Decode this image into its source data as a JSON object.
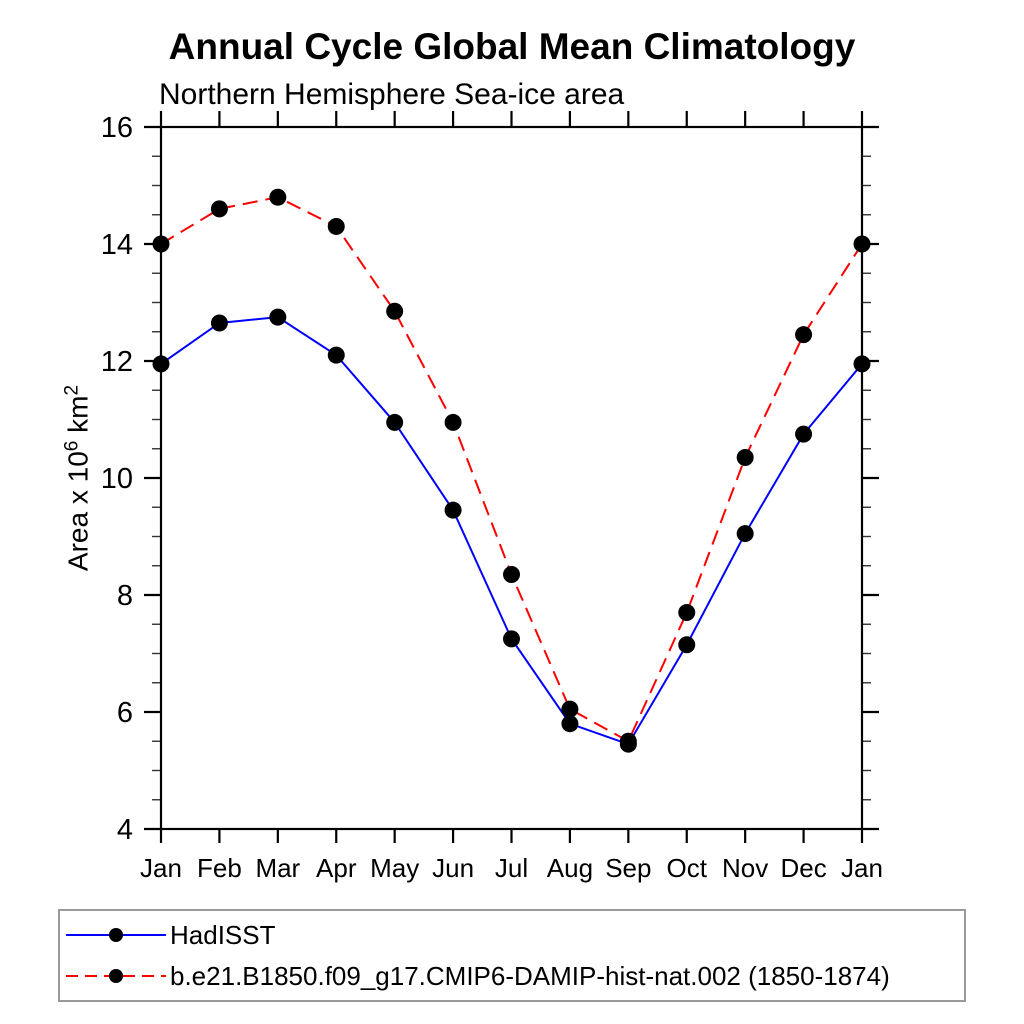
{
  "chart_data": {
    "type": "line",
    "title": "Annual Cycle Global Mean Climatology",
    "subtitle": "Northern Hemisphere Sea-ice area",
    "ylabel": {
      "prefix": "Area x 10",
      "exp1": "6",
      "mid": " km",
      "exp2": "2"
    },
    "categories": [
      "Jan",
      "Feb",
      "Mar",
      "Apr",
      "May",
      "Jun",
      "Jul",
      "Aug",
      "Sep",
      "Oct",
      "Nov",
      "Dec",
      "Jan"
    ],
    "ylim": [
      4,
      16
    ],
    "yticks": [
      4,
      6,
      8,
      10,
      12,
      14,
      16
    ],
    "y_minor_step": 0.5,
    "grid": false,
    "legend_position": "bottom-left-box",
    "marker_color": "#000000",
    "frame_color": "#000000",
    "series": [
      {
        "name": "HadISST",
        "color": "#0000ff",
        "line_style": "solid",
        "values": [
          11.95,
          12.65,
          12.75,
          12.1,
          10.95,
          9.45,
          7.25,
          5.8,
          5.45,
          7.15,
          9.05,
          10.75,
          11.95
        ]
      },
      {
        "name": "b.e21.B1850.f09_g17.CMIP6-DAMIP-hist-nat.002 (1850-1874)",
        "color": "#ff0000",
        "line_style": "dashed",
        "values": [
          14.0,
          14.6,
          14.8,
          14.3,
          12.85,
          10.95,
          8.35,
          6.05,
          5.5,
          7.7,
          10.35,
          12.45,
          14.0
        ]
      }
    ]
  }
}
